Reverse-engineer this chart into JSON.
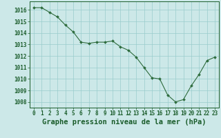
{
  "x": [
    0,
    1,
    2,
    3,
    4,
    5,
    6,
    7,
    8,
    9,
    10,
    11,
    12,
    13,
    14,
    15,
    16,
    17,
    18,
    19,
    20,
    21,
    22,
    23
  ],
  "y": [
    1016.2,
    1016.2,
    1015.8,
    1015.4,
    1014.7,
    1014.1,
    1013.2,
    1013.1,
    1013.2,
    1013.2,
    1013.3,
    1012.8,
    1012.5,
    1011.9,
    1011.0,
    1010.1,
    1010.0,
    1008.6,
    1008.0,
    1008.2,
    1009.4,
    1010.4,
    1011.6,
    1011.9
  ],
  "line_color": "#2d6b3c",
  "marker_color": "#2d6b3c",
  "bg_color": "#cce8e8",
  "grid_color": "#99cccc",
  "label_color": "#1a5c2a",
  "xlabel": "Graphe pression niveau de la mer (hPa)",
  "ylim": [
    1007.5,
    1016.75
  ],
  "yticks": [
    1008,
    1009,
    1010,
    1011,
    1012,
    1013,
    1014,
    1015,
    1016
  ],
  "xticks": [
    0,
    1,
    2,
    3,
    4,
    5,
    6,
    7,
    8,
    9,
    10,
    11,
    12,
    13,
    14,
    15,
    16,
    17,
    18,
    19,
    20,
    21,
    22,
    23
  ],
  "xlabel_fontsize": 7.5,
  "tick_fontsize": 5.5
}
